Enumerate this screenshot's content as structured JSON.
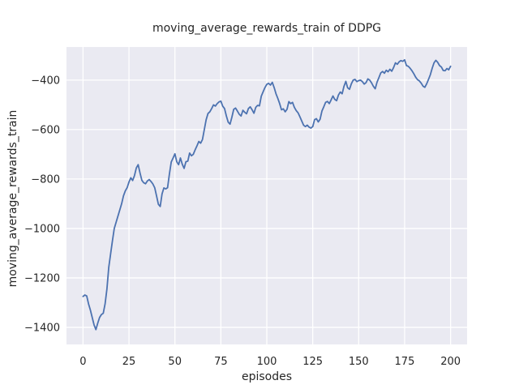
{
  "chart_data": {
    "type": "line",
    "title": "moving_average_rewards_train of DDPG",
    "xlabel": "episodes",
    "ylabel": "moving_average_rewards_train",
    "style": "seaborn-darkgrid",
    "grid": true,
    "legend": "none",
    "plot_bg_color": "#eaeaf2",
    "grid_color": "#ffffff",
    "line_color": "#4c72b0",
    "text_color": "#262626",
    "x_ticks": [
      0,
      25,
      50,
      75,
      100,
      125,
      150,
      175,
      200
    ],
    "y_ticks": [
      -400,
      -600,
      -800,
      -1000,
      -1200,
      -1400
    ],
    "xlim": [
      -9,
      209
    ],
    "ylim": [
      -1469,
      -266
    ],
    "series": [
      {
        "name": "moving_average_rewards_train",
        "x_start": 0,
        "x_step": 1,
        "x_end": 200,
        "values": [
          -1275,
          -1269,
          -1273,
          -1305,
          -1330,
          -1360,
          -1390,
          -1409,
          -1383,
          -1360,
          -1348,
          -1343,
          -1305,
          -1245,
          -1157,
          -1103,
          -1050,
          -1000,
          -975,
          -950,
          -925,
          -900,
          -868,
          -848,
          -835,
          -812,
          -795,
          -806,
          -786,
          -755,
          -742,
          -775,
          -805,
          -815,
          -819,
          -808,
          -802,
          -810,
          -820,
          -835,
          -868,
          -902,
          -911,
          -860,
          -836,
          -840,
          -835,
          -780,
          -731,
          -715,
          -698,
          -730,
          -742,
          -715,
          -740,
          -757,
          -730,
          -728,
          -695,
          -706,
          -700,
          -682,
          -666,
          -648,
          -655,
          -640,
          -600,
          -560,
          -535,
          -528,
          -515,
          -500,
          -505,
          -495,
          -488,
          -485,
          -505,
          -515,
          -545,
          -570,
          -578,
          -550,
          -518,
          -513,
          -525,
          -538,
          -545,
          -522,
          -530,
          -536,
          -515,
          -508,
          -520,
          -534,
          -510,
          -502,
          -504,
          -465,
          -447,
          -430,
          -417,
          -413,
          -420,
          -409,
          -430,
          -455,
          -474,
          -495,
          -520,
          -516,
          -528,
          -518,
          -487,
          -495,
          -490,
          -510,
          -523,
          -532,
          -548,
          -565,
          -582,
          -588,
          -582,
          -590,
          -594,
          -588,
          -560,
          -556,
          -569,
          -558,
          -525,
          -508,
          -490,
          -486,
          -495,
          -480,
          -464,
          -478,
          -483,
          -460,
          -448,
          -455,
          -425,
          -405,
          -431,
          -437,
          -415,
          -400,
          -397,
          -406,
          -402,
          -400,
          -406,
          -416,
          -410,
          -395,
          -400,
          -411,
          -425,
          -435,
          -408,
          -390,
          -371,
          -365,
          -372,
          -360,
          -366,
          -356,
          -364,
          -349,
          -330,
          -336,
          -326,
          -321,
          -324,
          -318,
          -341,
          -344,
          -352,
          -362,
          -374,
          -388,
          -398,
          -403,
          -412,
          -424,
          -429,
          -415,
          -397,
          -378,
          -352,
          -330,
          -320,
          -328,
          -341,
          -347,
          -361,
          -362,
          -353,
          -358,
          -344
        ]
      }
    ]
  }
}
